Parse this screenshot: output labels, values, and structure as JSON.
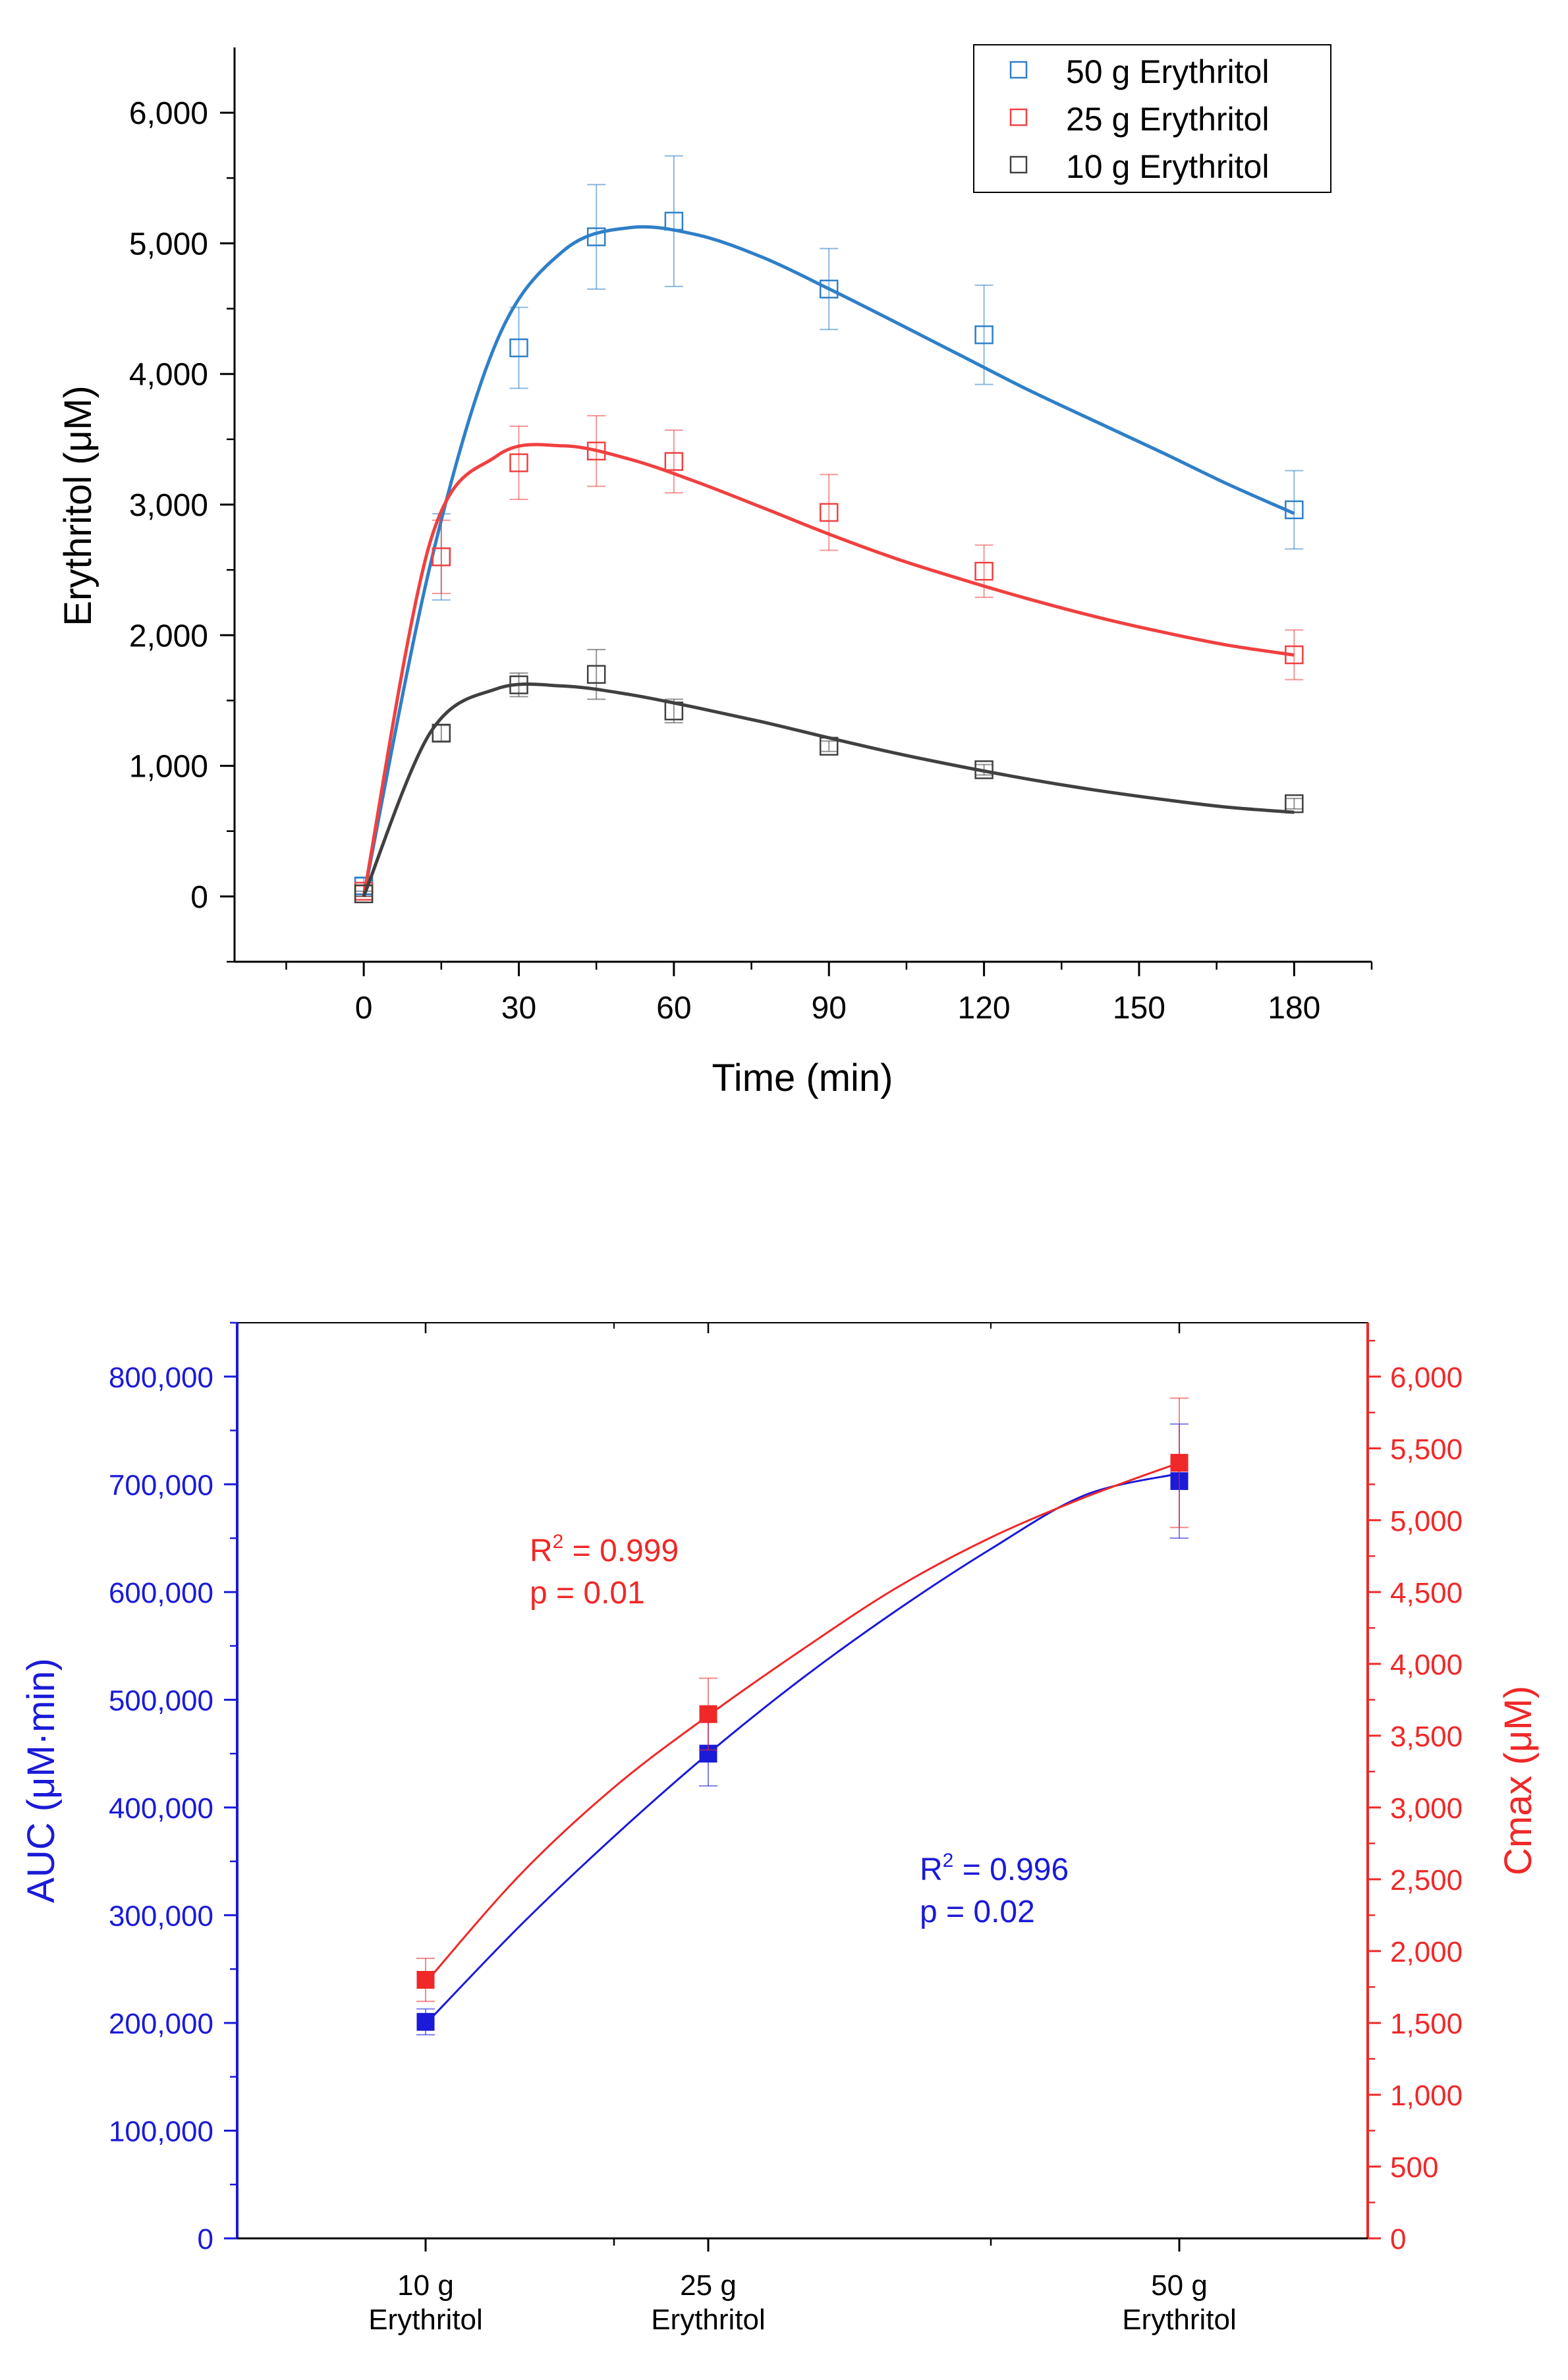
{
  "chart_data": [
    {
      "type": "line",
      "xlabel": "Time (min)",
      "ylabel": "Erythritol (μM)",
      "xlim": [
        -25,
        195
      ],
      "ylim": [
        -500,
        6500
      ],
      "xticks": [
        0,
        30,
        60,
        90,
        120,
        150,
        180
      ],
      "xtick_labels": [
        "0",
        "30",
        "60",
        "90",
        "120",
        "150",
        "180"
      ],
      "yticks": [
        0,
        1000,
        2000,
        3000,
        4000,
        5000,
        6000
      ],
      "ytick_labels": [
        "0",
        "1,000",
        "2,000",
        "3,000",
        "4,000",
        "5,000",
        "6,000"
      ],
      "legend": "top-right",
      "series": [
        {
          "name": "50 g Erythritol",
          "color": "#2f7fc8",
          "x": [
            0,
            15,
            30,
            45,
            60,
            90,
            120,
            180
          ],
          "y": [
            80,
            2600,
            4200,
            5050,
            5170,
            4650,
            4300,
            2960
          ],
          "err": [
            60,
            330,
            310,
            400,
            500,
            310,
            380,
            300
          ],
          "fit_y": [
            0,
            2536,
            4249,
            4941,
            5120,
            5067,
            4893,
            4652,
            4397,
            4137,
            3878,
            3639,
            3402,
            3157,
            2932
          ]
        },
        {
          "name": "25 g Erythritol",
          "color": "#f04040",
          "x": [
            0,
            15,
            30,
            45,
            60,
            90,
            120,
            180
          ],
          "y": [
            40,
            2600,
            3320,
            3410,
            3330,
            2940,
            2490,
            1850
          ],
          "err": [
            40,
            280,
            280,
            270,
            240,
            290,
            200,
            190
          ],
          "fit_y": [
            0,
            2714,
            3372,
            3450,
            3348,
            3175,
            2977,
            2774,
            2588,
            2427,
            2278,
            2143,
            2026,
            1924,
            1848
          ]
        },
        {
          "name": "10 g Erythritol",
          "color": "#404040",
          "x": [
            0,
            15,
            30,
            45,
            60,
            90,
            120,
            180
          ],
          "y": [
            20,
            1250,
            1620,
            1700,
            1420,
            1150,
            970,
            710
          ],
          "err": [
            20,
            60,
            90,
            190,
            90,
            40,
            40,
            40
          ],
          "fit_y": [
            0,
            1253,
            1590,
            1611,
            1546,
            1446,
            1336,
            1214,
            1097,
            993,
            898,
            815,
            744,
            683,
            644
          ]
        }
      ]
    },
    {
      "type": "scatter",
      "categories": [
        "10 g\nErythritol",
        "25 g\nErythritol",
        "50 g\nErythritol"
      ],
      "dose": [
        10,
        25,
        50
      ],
      "xlim": [
        0,
        60
      ],
      "xticks_minor": [
        20,
        40
      ],
      "ylabel_left": "AUC (μM·min)",
      "ylabel_right": "Cmax (μM)",
      "ylim_left": [
        0,
        850000
      ],
      "yticks_left": [
        0,
        100000,
        200000,
        300000,
        400000,
        500000,
        600000,
        700000,
        800000
      ],
      "ytick_labels_left": [
        "0",
        "100,000",
        "200,000",
        "300,000",
        "400,000",
        "500,000",
        "600,000",
        "700,000",
        "800,000"
      ],
      "ylim_right": [
        0,
        6375
      ],
      "yticks_right": [
        0,
        500,
        1000,
        1500,
        2000,
        2500,
        3000,
        3500,
        4000,
        4500,
        5000,
        5500,
        6000
      ],
      "ytick_labels_right": [
        "0",
        "500",
        "1,000",
        "1,500",
        "2,000",
        "2,500",
        "3,000",
        "3,500",
        "4,000",
        "4,500",
        "5,000",
        "5,500",
        "6,000"
      ],
      "series": [
        {
          "name": "AUC",
          "axis": "left",
          "color": "#1a1ad8",
          "values": [
            201000,
            450000,
            703000
          ],
          "err": [
            12000,
            30000,
            53000
          ],
          "fit_x": [
            10,
            15,
            20,
            25,
            30,
            35,
            40,
            45,
            50
          ],
          "fit_y": [
            199000,
            290000,
            373000,
            450000,
            520000,
            583000,
            640000,
            690000,
            710000
          ],
          "annotation": {
            "r2_base": "R",
            "r2_sup": "2",
            "r2_rest": " = 0.996",
            "p": "p = 0.02"
          }
        },
        {
          "name": "Cmax",
          "axis": "right",
          "color": "#f02828",
          "values": [
            1800,
            3650,
            5400
          ],
          "err": [
            150,
            250,
            450
          ],
          "fit_x": [
            10,
            15,
            20,
            25,
            30,
            35,
            40,
            45,
            50
          ],
          "fit_y": [
            1780,
            2530,
            3140,
            3640,
            4100,
            4530,
            4880,
            5160,
            5400
          ],
          "annotation": {
            "r2_base": "R",
            "r2_sup": "2",
            "r2_rest": " = 0.999",
            "p": "p = 0.01"
          }
        }
      ]
    }
  ]
}
